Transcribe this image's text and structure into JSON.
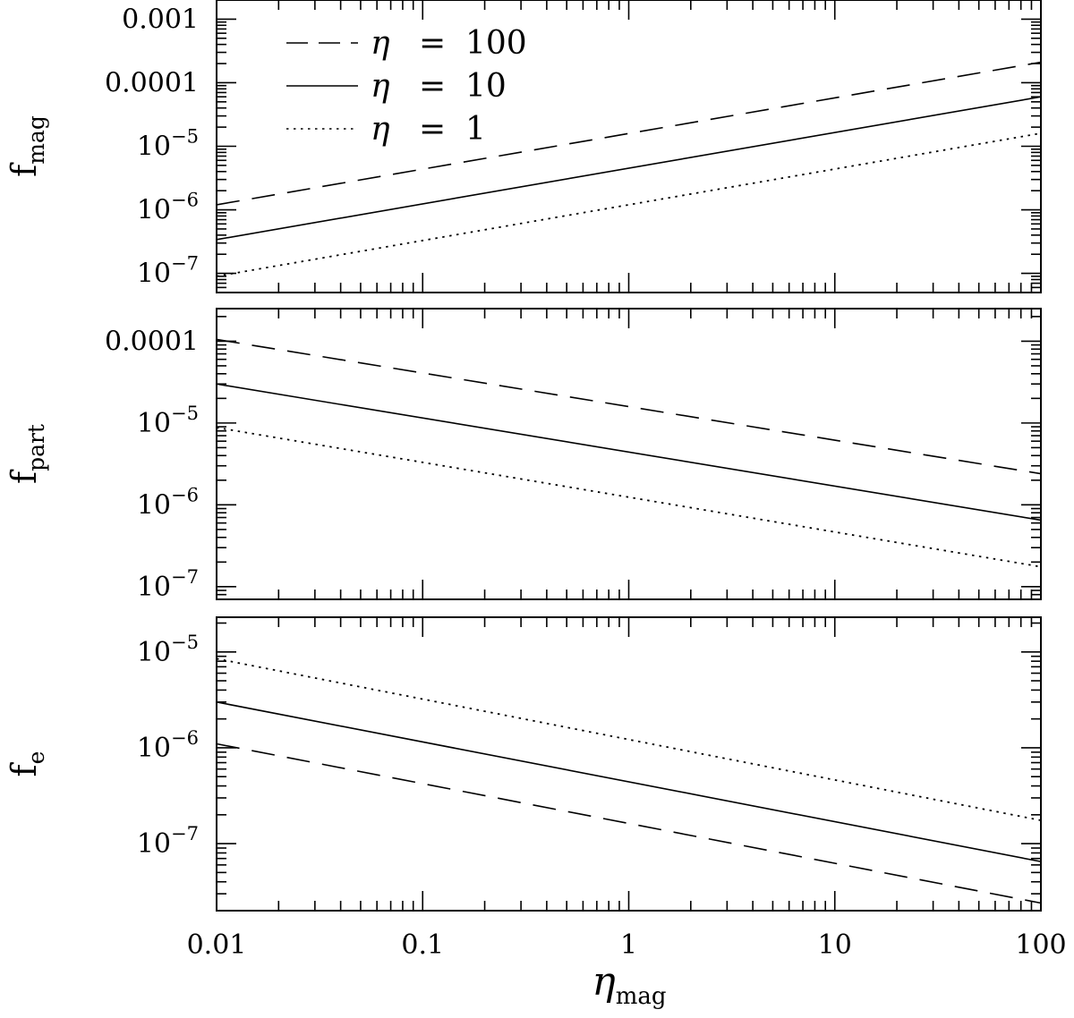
{
  "chart_data": [
    {
      "type": "line",
      "ylabel": "f",
      "ylabel_sub": "mag",
      "xscale": "log",
      "yscale": "log",
      "xlim": [
        0.01,
        100
      ],
      "ylim": [
        5e-08,
        0.002
      ],
      "yticks": [
        {
          "value": 0.001,
          "base": "0.001"
        },
        {
          "value": 0.0001,
          "base": "0.0001"
        },
        {
          "value": 1e-05,
          "base": "10",
          "exp": "−5"
        },
        {
          "value": 1e-06,
          "base": "10",
          "exp": "−6"
        },
        {
          "value": 1e-07,
          "base": "10",
          "exp": "−7"
        }
      ],
      "legend_placement": "top-left",
      "series": [
        {
          "name_symbol": "η",
          "name_eq": "=",
          "name_value": "100",
          "style": "dashed",
          "x": [
            0.01,
            100
          ],
          "y": [
            1.2e-06,
            0.00021
          ]
        },
        {
          "name_symbol": "η",
          "name_eq": "=",
          "name_value": "10",
          "style": "solid",
          "x": [
            0.01,
            100
          ],
          "y": [
            3.4e-07,
            6e-05
          ]
        },
        {
          "name_symbol": "η",
          "name_eq": "=",
          "name_value": "1",
          "style": "dotted",
          "x": [
            0.01,
            100
          ],
          "y": [
            9e-08,
            1.6e-05
          ]
        }
      ]
    },
    {
      "type": "line",
      "ylabel": "f",
      "ylabel_sub": "part",
      "xscale": "log",
      "yscale": "log",
      "xlim": [
        0.01,
        100
      ],
      "ylim": [
        7e-08,
        0.00025
      ],
      "yticks": [
        {
          "value": 0.0001,
          "base": "0.0001"
        },
        {
          "value": 1e-05,
          "base": "10",
          "exp": "−5"
        },
        {
          "value": 1e-06,
          "base": "10",
          "exp": "−6"
        },
        {
          "value": 1e-07,
          "base": "10",
          "exp": "−7"
        }
      ],
      "series": [
        {
          "style": "dashed",
          "x": [
            0.01,
            100
          ],
          "y": [
            0.000105,
            2.4e-06
          ]
        },
        {
          "style": "solid",
          "x": [
            0.01,
            100
          ],
          "y": [
            3e-05,
            6.5e-07
          ]
        },
        {
          "style": "dotted",
          "x": [
            0.01,
            100
          ],
          "y": [
            8.8e-06,
            1.75e-07
          ]
        }
      ]
    },
    {
      "type": "line",
      "ylabel": "f",
      "ylabel_sub": "e",
      "xlabel": "η",
      "xlabel_sub": "mag",
      "xscale": "log",
      "yscale": "log",
      "xlim": [
        0.01,
        100
      ],
      "ylim": [
        2e-08,
        2.3e-05
      ],
      "yticks": [
        {
          "value": 1e-05,
          "base": "10",
          "exp": "−5"
        },
        {
          "value": 1e-06,
          "base": "10",
          "exp": "−6"
        },
        {
          "value": 1e-07,
          "base": "10",
          "exp": "−7"
        }
      ],
      "xticks": [
        {
          "value": 0.01,
          "label": "0.01"
        },
        {
          "value": 0.1,
          "label": "0.1"
        },
        {
          "value": 1,
          "label": "1"
        },
        {
          "value": 10,
          "label": "10"
        },
        {
          "value": 100,
          "label": "100"
        }
      ],
      "series": [
        {
          "style": "dotted",
          "x": [
            0.01,
            100
          ],
          "y": [
            8.5e-06,
            1.75e-07
          ]
        },
        {
          "style": "solid",
          "x": [
            0.01,
            100
          ],
          "y": [
            3e-06,
            6.5e-08
          ]
        },
        {
          "style": "dashed",
          "x": [
            0.01,
            100
          ],
          "y": [
            1.1e-06,
            2.4e-08
          ]
        }
      ]
    }
  ]
}
